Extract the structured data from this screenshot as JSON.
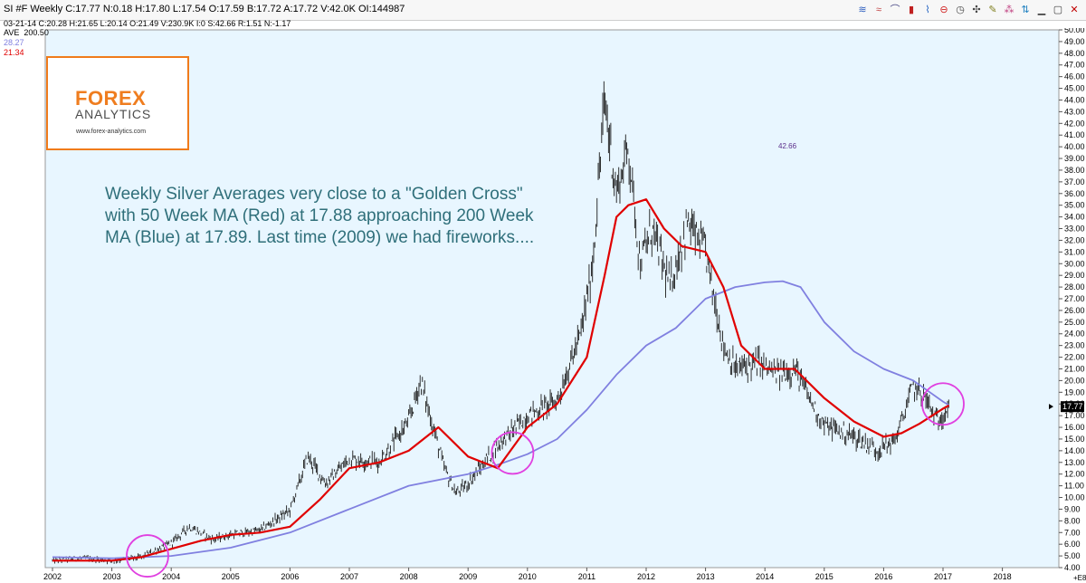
{
  "window": {
    "title": "SI #F Weekly C:17.77 N:0.18 H:17.80 L:17.54 O:17.59 B:17.72 A:17.72 V:42.0K OI:144987",
    "info_line": "03-21-14 C:20.28 H:21.65 L:20.14 O:21.49 V:230.9K I:0 S:42.66 R:1.51 N:-1.17",
    "toolbar_icons": [
      {
        "name": "wave-chart-icon",
        "glyph": "≋",
        "color": "#3060c0"
      },
      {
        "name": "wave-chart-alt-icon",
        "glyph": "≈",
        "color": "#c04040"
      },
      {
        "name": "arc-chart-icon",
        "glyph": "⌒",
        "color": "#404080"
      },
      {
        "name": "bar-chart-icon",
        "glyph": "▮",
        "color": "#c02020"
      },
      {
        "name": "line-chart-icon",
        "glyph": "⌇",
        "color": "#2060c0"
      },
      {
        "name": "no-entry-icon",
        "glyph": "⊖",
        "color": "#d02020"
      },
      {
        "name": "clock-icon",
        "glyph": "◷",
        "color": "#404040"
      },
      {
        "name": "crosshair-icon",
        "glyph": "✣",
        "color": "#404040"
      },
      {
        "name": "pencil-icon",
        "glyph": "✎",
        "color": "#808020"
      },
      {
        "name": "network-icon",
        "glyph": "⁂",
        "color": "#c04080"
      },
      {
        "name": "arrows-icon",
        "glyph": "⇅",
        "color": "#2080c0"
      },
      {
        "name": "minimize-icon",
        "glyph": "▁",
        "color": "#404040"
      },
      {
        "name": "maximize-icon",
        "glyph": "▢",
        "color": "#404040"
      },
      {
        "name": "close-icon",
        "glyph": "✕",
        "color": "#c00000"
      }
    ]
  },
  "legend": {
    "label": "AVE",
    "label_value": "200.50",
    "ma200_value": "28.27",
    "ma50_value": "21.34",
    "ma200_color": "#8080e0",
    "ma50_color": "#e00000"
  },
  "logo": {
    "brand": "FOREX",
    "sub": "ANALYTICS",
    "url": "www.forex-analytics.com"
  },
  "annotation": {
    "lines": [
      "Weekly Silver Averages very close to a \"Golden Cross\"",
      "with 50 Week MA (Red) at 17.88 approaching 200 Week",
      "MA (Blue) at 17.89. Last time (2009) we had fireworks...."
    ],
    "mark_label": "42.66"
  },
  "chart_data": {
    "type": "line",
    "title": "SI #F Weekly",
    "xlabel": "",
    "ylabel": "",
    "x_ticks": [
      "2002",
      "2003",
      "2004",
      "2005",
      "2006",
      "2007",
      "2008",
      "2009",
      "2010",
      "2011",
      "2012",
      "2013",
      "2014",
      "2015",
      "2016",
      "2017",
      "2018"
    ],
    "ylim": [
      4.0,
      50.0
    ],
    "y_ticks": [
      "4.00",
      "5.00",
      "6.00",
      "7.00",
      "8.00",
      "9.00",
      "10.00",
      "11.00",
      "12.00",
      "13.00",
      "14.00",
      "15.00",
      "16.00",
      "17.00",
      "18.00",
      "19.00",
      "20.00",
      "21.00",
      "22.00",
      "23.00",
      "24.00",
      "25.00",
      "26.00",
      "27.00",
      "28.00",
      "29.00",
      "30.00",
      "31.00",
      "32.00",
      "33.00",
      "34.00",
      "35.00",
      "36.00",
      "37.00",
      "38.00",
      "39.00",
      "40.00",
      "41.00",
      "42.00",
      "43.00",
      "44.00",
      "45.00",
      "46.00",
      "47.00",
      "48.00",
      "49.00",
      "50.00"
    ],
    "last_price_label": "17.77",
    "last_price": 17.77,
    "corner_label": "+E8",
    "grid": false,
    "series": [
      {
        "name": "Silver Weekly Price",
        "color": "#000000",
        "x": [
          2002.0,
          2002.5,
          2003.0,
          2003.5,
          2004.0,
          2004.3,
          2004.7,
          2005.0,
          2005.5,
          2006.0,
          2006.3,
          2006.6,
          2007.0,
          2007.5,
          2008.0,
          2008.2,
          2008.6,
          2008.8,
          2009.0,
          2009.5,
          2010.0,
          2010.5,
          2010.9,
          2011.1,
          2011.3,
          2011.5,
          2011.7,
          2011.9,
          2012.1,
          2012.4,
          2012.7,
          2013.0,
          2013.3,
          2013.5,
          2013.9,
          2014.2,
          2014.5,
          2014.8,
          2015.0,
          2015.5,
          2015.9,
          2016.2,
          2016.5,
          2016.7,
          2016.9,
          2017.1
        ],
        "y": [
          4.6,
          4.8,
          4.6,
          4.9,
          6.1,
          7.5,
          6.4,
          6.8,
          7.2,
          8.9,
          13.5,
          11.2,
          13.3,
          13.0,
          16.5,
          20.0,
          12.5,
          10.3,
          11.2,
          14.5,
          17.0,
          18.3,
          24.0,
          30.0,
          44.0,
          36.0,
          40.0,
          30.0,
          33.0,
          28.0,
          33.5,
          31.0,
          23.0,
          21.0,
          21.5,
          20.5,
          21.0,
          18.0,
          16.2,
          15.2,
          14.0,
          15.0,
          19.5,
          18.5,
          16.5,
          17.8
        ]
      },
      {
        "name": "50 Week MA",
        "color": "#e00000",
        "x": [
          2002.0,
          2003.0,
          2003.5,
          2004.0,
          2004.5,
          2005.0,
          2005.5,
          2006.0,
          2006.5,
          2007.0,
          2007.5,
          2008.0,
          2008.5,
          2009.0,
          2009.5,
          2010.0,
          2010.5,
          2011.0,
          2011.3,
          2011.5,
          2011.7,
          2012.0,
          2012.3,
          2012.6,
          2013.0,
          2013.3,
          2013.6,
          2014.0,
          2014.5,
          2015.0,
          2015.5,
          2016.0,
          2016.3,
          2016.6,
          2017.0,
          2017.1
        ],
        "y": [
          4.6,
          4.6,
          4.9,
          5.6,
          6.3,
          6.8,
          7.0,
          7.5,
          9.8,
          12.5,
          13.0,
          14.0,
          16.0,
          13.5,
          12.5,
          16.0,
          18.0,
          22.0,
          29.0,
          34.0,
          35.0,
          35.5,
          33.0,
          31.5,
          31.0,
          28.0,
          23.0,
          21.0,
          21.0,
          18.5,
          16.5,
          15.2,
          15.5,
          16.3,
          17.6,
          17.88
        ]
      },
      {
        "name": "200 Week MA",
        "color": "#8080e0",
        "x": [
          2002.0,
          2003.0,
          2004.0,
          2005.0,
          2006.0,
          2007.0,
          2008.0,
          2009.0,
          2009.5,
          2010.0,
          2010.5,
          2011.0,
          2011.5,
          2012.0,
          2012.5,
          2013.0,
          2013.5,
          2014.0,
          2014.3,
          2014.6,
          2015.0,
          2015.5,
          2016.0,
          2016.5,
          2017.0,
          2017.1
        ],
        "y": [
          4.9,
          4.8,
          5.0,
          5.7,
          7.0,
          9.0,
          11.0,
          12.0,
          12.8,
          13.7,
          15.0,
          17.5,
          20.5,
          23.0,
          24.5,
          27.0,
          28.0,
          28.4,
          28.5,
          28.0,
          25.0,
          22.5,
          21.0,
          20.0,
          18.2,
          17.89
        ]
      }
    ]
  }
}
